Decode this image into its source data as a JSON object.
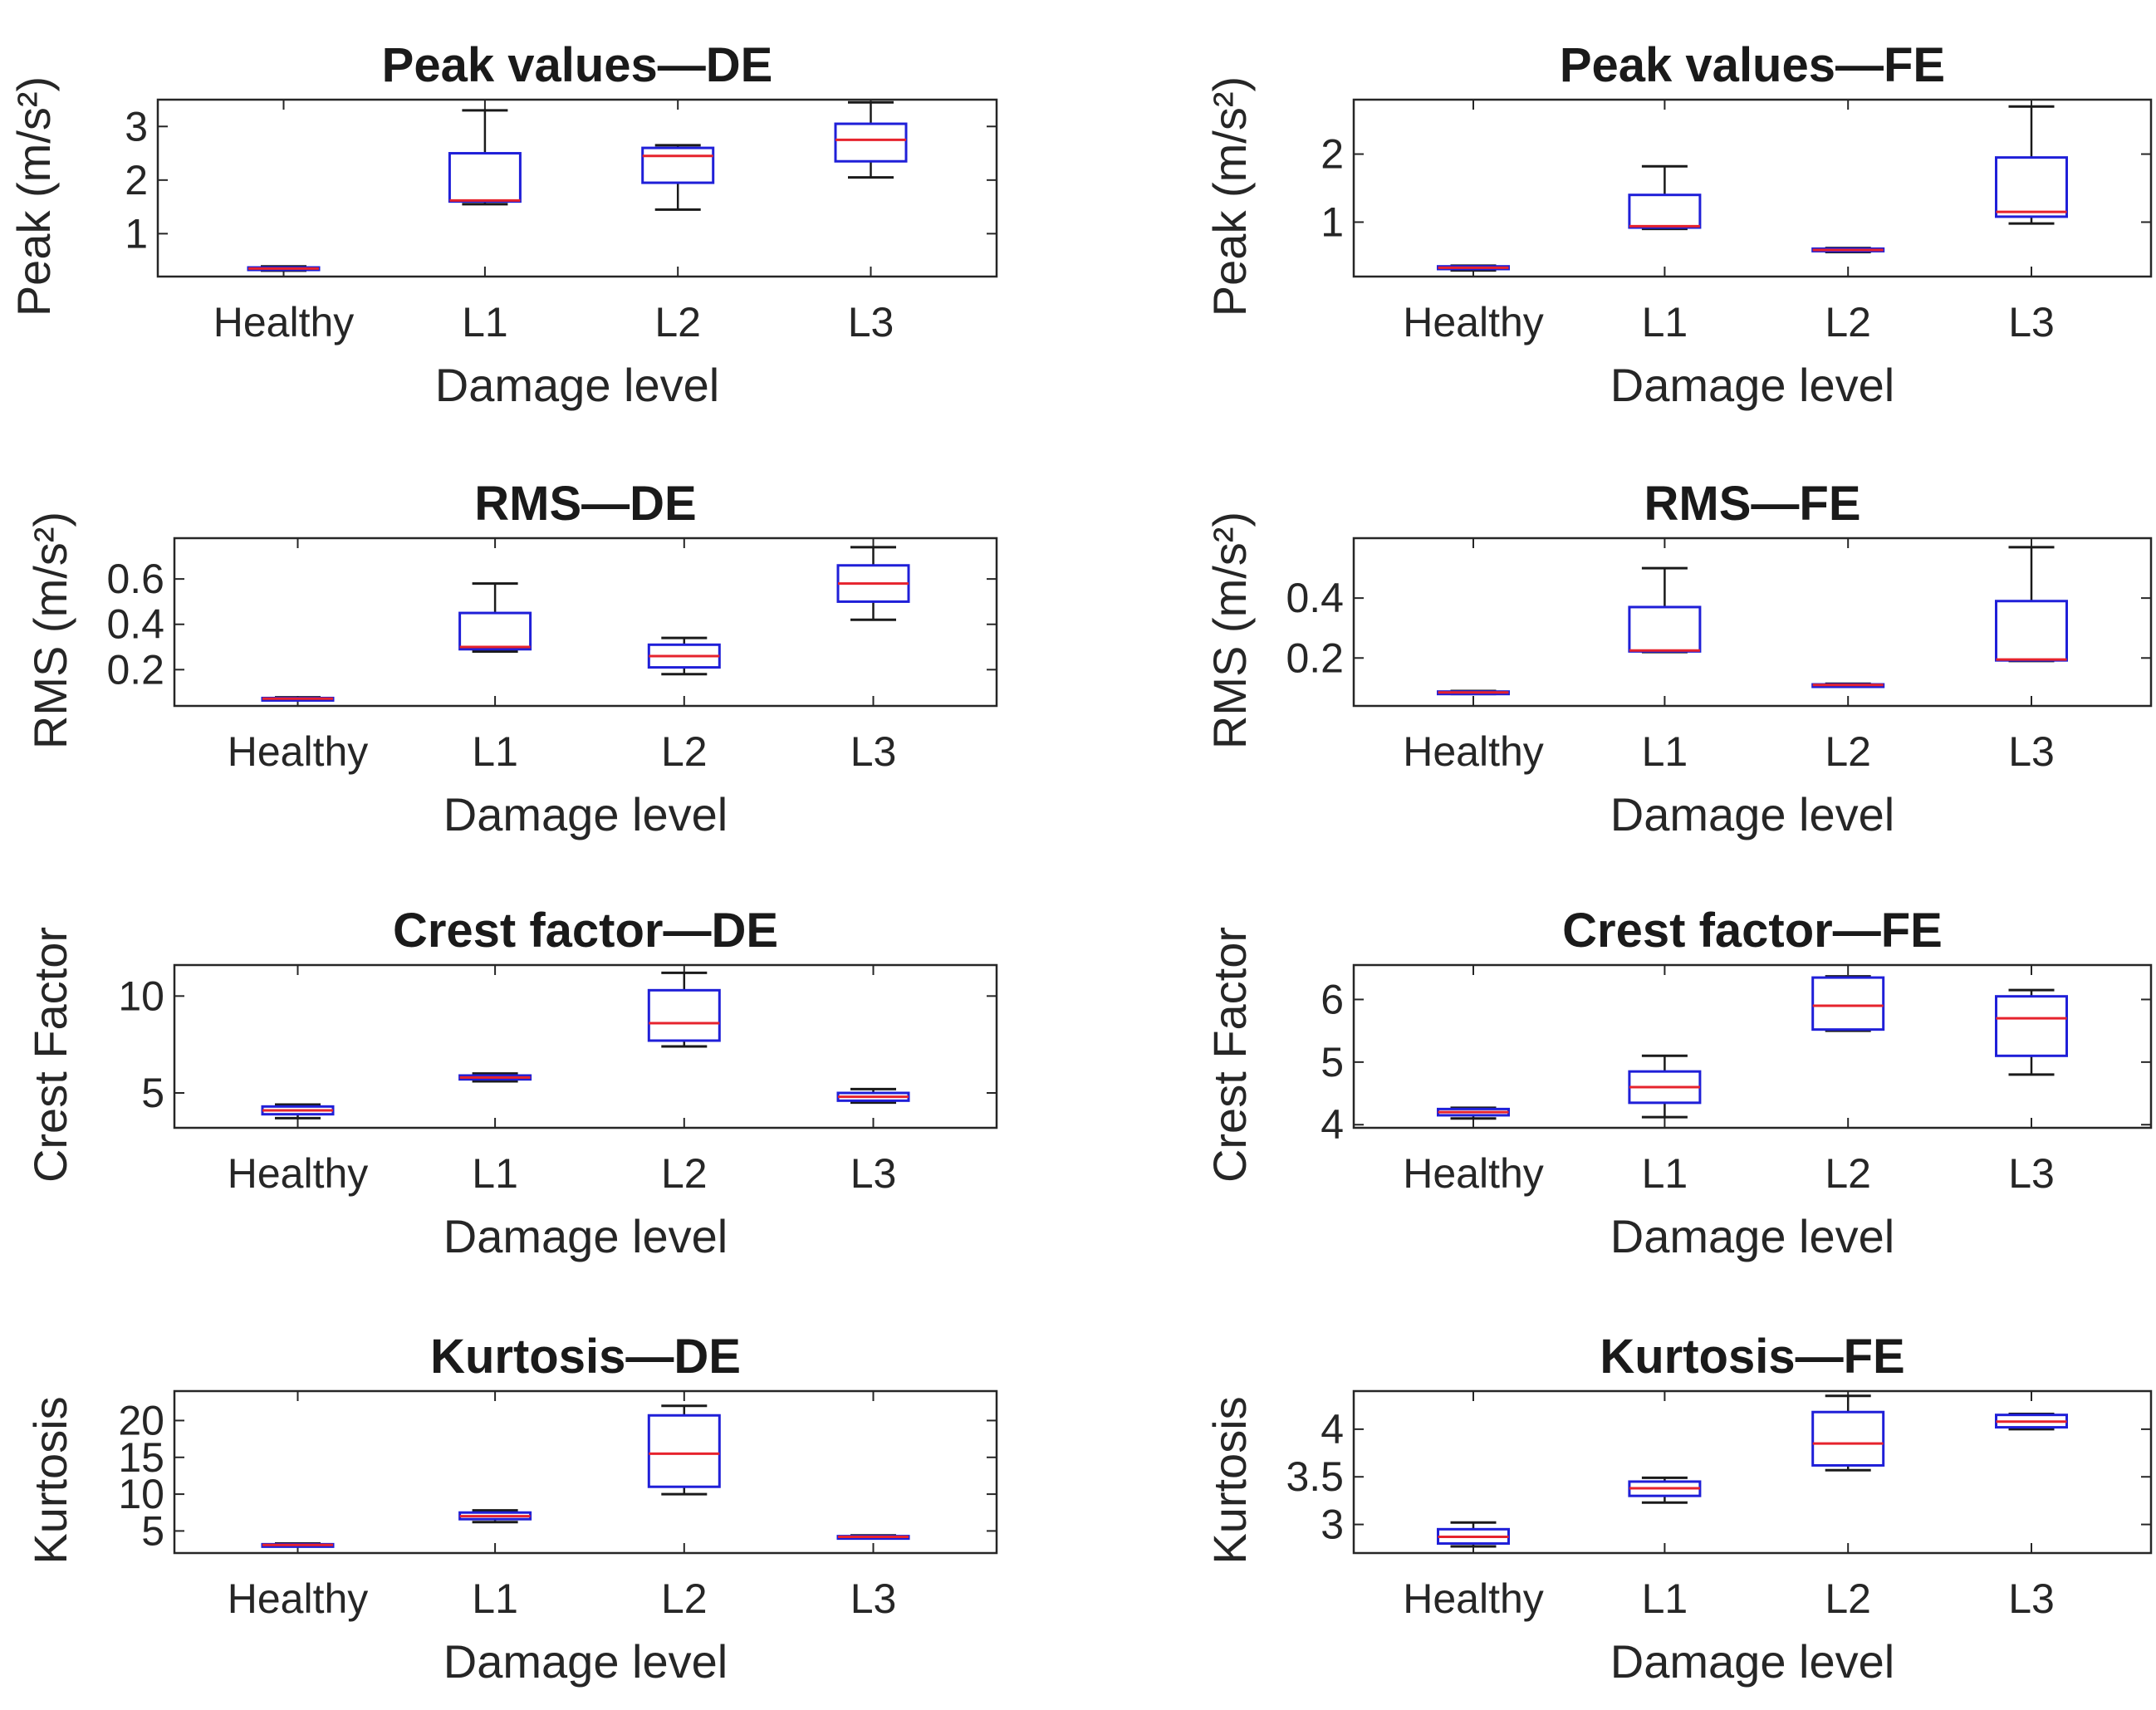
{
  "chart_data": [
    {
      "type": "box",
      "title": "Peak values—DE",
      "xlabel": "Damage level",
      "ylabel": "Peak (m/s²)",
      "categories": [
        "Healthy",
        "L1",
        "L2",
        "L3"
      ],
      "ylim": [
        0.2,
        3.5
      ],
      "yticks": [
        1,
        2,
        3
      ],
      "ytick_labels": [
        "1",
        "2",
        "3"
      ],
      "boxes": [
        {
          "min": 0.31,
          "q1": 0.33,
          "median": 0.35,
          "q3": 0.37,
          "max": 0.39
        },
        {
          "min": 1.55,
          "q1": 1.6,
          "median": 1.62,
          "q3": 2.5,
          "max": 3.3
        },
        {
          "min": 1.45,
          "q1": 1.95,
          "median": 2.45,
          "q3": 2.6,
          "max": 2.65
        },
        {
          "min": 2.05,
          "q1": 2.35,
          "median": 2.75,
          "q3": 3.05,
          "max": 3.45
        }
      ]
    },
    {
      "type": "box",
      "title": "Peak values—FE",
      "xlabel": "Damage level",
      "ylabel": "Peak (m/s²)",
      "categories": [
        "Healthy",
        "L1",
        "L2",
        "L3"
      ],
      "ylim": [
        0.2,
        2.8
      ],
      "yticks": [
        1,
        2
      ],
      "ytick_labels": [
        "1",
        "2"
      ],
      "boxes": [
        {
          "min": 0.29,
          "q1": 0.31,
          "median": 0.33,
          "q3": 0.35,
          "max": 0.36
        },
        {
          "min": 0.9,
          "q1": 0.92,
          "median": 0.94,
          "q3": 1.4,
          "max": 1.82
        },
        {
          "min": 0.56,
          "q1": 0.58,
          "median": 0.59,
          "q3": 0.61,
          "max": 0.62
        },
        {
          "min": 0.98,
          "q1": 1.08,
          "median": 1.15,
          "q3": 1.95,
          "max": 2.7
        }
      ]
    },
    {
      "type": "box",
      "title": "RMS—DE",
      "xlabel": "Damage level",
      "ylabel": "RMS (m/s²)",
      "categories": [
        "Healthy",
        "L1",
        "L2",
        "L3"
      ],
      "ylim": [
        0.04,
        0.78
      ],
      "yticks": [
        0.2,
        0.4,
        0.6
      ],
      "ytick_labels": [
        "0.2",
        "0.4",
        "0.6"
      ],
      "boxes": [
        {
          "min": 0.067,
          "q1": 0.07,
          "median": 0.072,
          "q3": 0.075,
          "max": 0.078
        },
        {
          "min": 0.28,
          "q1": 0.29,
          "median": 0.3,
          "q3": 0.45,
          "max": 0.58
        },
        {
          "min": 0.18,
          "q1": 0.21,
          "median": 0.26,
          "q3": 0.31,
          "max": 0.34
        },
        {
          "min": 0.42,
          "q1": 0.5,
          "median": 0.58,
          "q3": 0.66,
          "max": 0.74
        }
      ]
    },
    {
      "type": "box",
      "title": "RMS—FE",
      "xlabel": "Damage level",
      "ylabel": "RMS (m/s²)",
      "categories": [
        "Healthy",
        "L1",
        "L2",
        "L3"
      ],
      "ylim": [
        0.04,
        0.6
      ],
      "yticks": [
        0.2,
        0.4
      ],
      "ytick_labels": [
        "0.2",
        "0.4"
      ],
      "boxes": [
        {
          "min": 0.08,
          "q1": 0.082,
          "median": 0.085,
          "q3": 0.088,
          "max": 0.09
        },
        {
          "min": 0.22,
          "q1": 0.222,
          "median": 0.225,
          "q3": 0.37,
          "max": 0.5
        },
        {
          "min": 0.105,
          "q1": 0.108,
          "median": 0.11,
          "q3": 0.112,
          "max": 0.114
        },
        {
          "min": 0.19,
          "q1": 0.192,
          "median": 0.195,
          "q3": 0.39,
          "max": 0.57
        }
      ]
    },
    {
      "type": "box",
      "title": "Crest factor—DE",
      "xlabel": "Damage level",
      "ylabel": "Crest Factor",
      "categories": [
        "Healthy",
        "L1",
        "L2",
        "L3"
      ],
      "ylim": [
        3.2,
        11.6
      ],
      "yticks": [
        5,
        10
      ],
      "ytick_labels": [
        "5",
        "10"
      ],
      "boxes": [
        {
          "min": 3.7,
          "q1": 3.9,
          "median": 4.1,
          "q3": 4.3,
          "max": 4.4
        },
        {
          "min": 5.6,
          "q1": 5.7,
          "median": 5.8,
          "q3": 5.9,
          "max": 6.0
        },
        {
          "min": 7.4,
          "q1": 7.7,
          "median": 8.6,
          "q3": 10.3,
          "max": 11.2
        },
        {
          "min": 4.5,
          "q1": 4.6,
          "median": 4.8,
          "q3": 5.0,
          "max": 5.2
        }
      ]
    },
    {
      "type": "box",
      "title": "Crest factor—FE",
      "xlabel": "Damage level",
      "ylabel": "Crest Factor",
      "categories": [
        "Healthy",
        "L1",
        "L2",
        "L3"
      ],
      "ylim": [
        3.95,
        6.55
      ],
      "yticks": [
        4,
        5,
        6
      ],
      "ytick_labels": [
        "4",
        "5",
        "6"
      ],
      "boxes": [
        {
          "min": 4.1,
          "q1": 4.15,
          "median": 4.2,
          "q3": 4.25,
          "max": 4.27
        },
        {
          "min": 4.12,
          "q1": 4.35,
          "median": 4.6,
          "q3": 4.85,
          "max": 5.1
        },
        {
          "min": 5.5,
          "q1": 5.52,
          "median": 5.9,
          "q3": 6.35,
          "max": 6.37
        },
        {
          "min": 4.8,
          "q1": 5.1,
          "median": 5.7,
          "q3": 6.05,
          "max": 6.15
        }
      ]
    },
    {
      "type": "box",
      "title": "Kurtosis—DE",
      "xlabel": "Damage level",
      "ylabel": "Kurtosis",
      "categories": [
        "Healthy",
        "L1",
        "L2",
        "L3"
      ],
      "ylim": [
        2,
        24
      ],
      "yticks": [
        5,
        10,
        15,
        20
      ],
      "ytick_labels": [
        "5",
        "10",
        "15",
        "20"
      ],
      "boxes": [
        {
          "min": 2.9,
          "q1": 3.0,
          "median": 3.1,
          "q3": 3.2,
          "max": 3.3
        },
        {
          "min": 6.2,
          "q1": 6.6,
          "median": 7.0,
          "q3": 7.5,
          "max": 7.8
        },
        {
          "min": 10.0,
          "q1": 11.0,
          "median": 15.5,
          "q3": 20.7,
          "max": 22.0
        },
        {
          "min": 4.0,
          "q1": 4.1,
          "median": 4.2,
          "q3": 4.3,
          "max": 4.4
        }
      ]
    },
    {
      "type": "box",
      "title": "Kurtosis—FE",
      "xlabel": "Damage level",
      "ylabel": "Kurtosis",
      "categories": [
        "Healthy",
        "L1",
        "L2",
        "L3"
      ],
      "ylim": [
        2.7,
        4.4
      ],
      "yticks": [
        3,
        3.5,
        4
      ],
      "ytick_labels": [
        "3",
        "3.5",
        "4"
      ],
      "boxes": [
        {
          "min": 2.77,
          "q1": 2.8,
          "median": 2.87,
          "q3": 2.95,
          "max": 3.02
        },
        {
          "min": 3.23,
          "q1": 3.3,
          "median": 3.38,
          "q3": 3.45,
          "max": 3.49
        },
        {
          "min": 3.57,
          "q1": 3.62,
          "median": 3.85,
          "q3": 4.18,
          "max": 4.35
        },
        {
          "min": 4.0,
          "q1": 4.02,
          "median": 4.08,
          "q3": 4.15,
          "max": 4.16
        }
      ]
    }
  ]
}
